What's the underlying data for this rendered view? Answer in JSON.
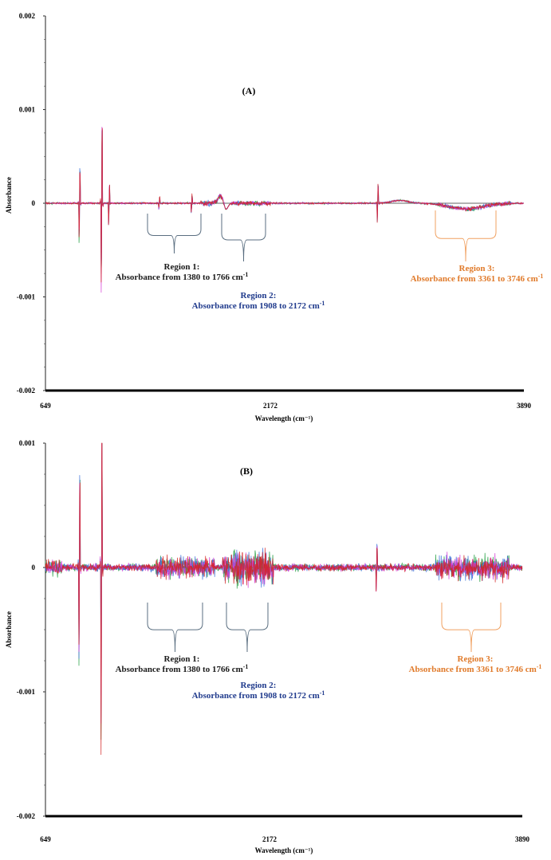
{
  "chart_data": [
    {
      "type": "line",
      "panel_label": "(A)",
      "xlabel": "Wavelength (cm⁻¹)",
      "ylabel": "Absorbance",
      "xlim": [
        649,
        3890
      ],
      "ylim": [
        -0.002,
        0.002
      ],
      "x_ticks": [
        "649",
        "2172",
        "3890"
      ],
      "y_ticks": [
        "0.002",
        "0.001",
        "0",
        "-0.001",
        "-0.002"
      ],
      "y_tick_values": [
        0.002,
        0.001,
        0,
        -0.001,
        -0.002
      ],
      "series_colors": [
        "#1a9a3a",
        "#3a6fd8",
        "#d63ad6",
        "#d42020"
      ],
      "spectral_features": [
        {
          "x": 880,
          "amp": 0.00046
        },
        {
          "x": 1030,
          "amp": 0.00112
        },
        {
          "x": 1080,
          "amp": 0.00025
        },
        {
          "x": 1420,
          "amp": 8e-05
        },
        {
          "x": 1640,
          "amp": 0.00011
        },
        {
          "x": 2900,
          "amp": 0.00025
        }
      ],
      "regions": [
        {
          "title": "Region 1:",
          "line1": "Absorbance from 1380 to 1766 cm",
          "sup": "-1",
          "color": "#1a1a1a",
          "bracket_color": "#5a6e80",
          "x_from": 1380,
          "x_to": 1766
        },
        {
          "title": "Region 2:",
          "line1": "Absorbance from 1908 to 2172 cm",
          "sup": "-1",
          "color": "#1f3a8c",
          "bracket_color": "#5a6e80",
          "x_from": 1908,
          "x_to": 2172
        },
        {
          "title": "Region 3:",
          "line1": "Absorbance from 3361 to 3746 cm",
          "sup": "-1",
          "color": "#e07a2a",
          "bracket_color": "#f0a060",
          "x_from": 3361,
          "x_to": 3746
        }
      ]
    },
    {
      "type": "line",
      "panel_label": "(B)",
      "xlabel": "Wavelength (cm⁻¹)",
      "ylabel": "Absorbance",
      "xlim": [
        649,
        3890
      ],
      "ylim": [
        -0.002,
        0.001
      ],
      "x_ticks": [
        "649",
        "2172",
        "3890"
      ],
      "y_ticks": [
        "0.001",
        "0",
        "-0.001",
        "-0.002"
      ],
      "y_tick_values": [
        0.001,
        0,
        -0.001,
        -0.002
      ],
      "series_colors": [
        "#1a9a3a",
        "#3a6fd8",
        "#d63ad6",
        "#d42020"
      ],
      "spectral_features": [
        {
          "x": 880,
          "amp": 0.0009
        },
        {
          "x": 1030,
          "amp": 0.0016
        },
        {
          "x": 2900,
          "amp": 0.00025
        }
      ],
      "regions": [
        {
          "title": "Region 1:",
          "line1": "Absorbance from 1380 to 1766 cm",
          "sup": "-1",
          "color": "#1a1a1a",
          "bracket_color": "#5a6e80",
          "x_from": 1380,
          "x_to": 1766
        },
        {
          "title": "Region 2:",
          "line1": "Absorbance from 1908 to 2172 cm",
          "sup": "-1",
          "color": "#1f3a8c",
          "bracket_color": "#5a6e80",
          "x_from": 1908,
          "x_to": 2172
        },
        {
          "title": "Region 3:",
          "line1": "Absorbance from 3361 to 3746 cm",
          "sup": "-1",
          "color": "#e07a2a",
          "bracket_color": "#f0a060",
          "x_from": 3361,
          "x_to": 3746
        }
      ]
    }
  ]
}
